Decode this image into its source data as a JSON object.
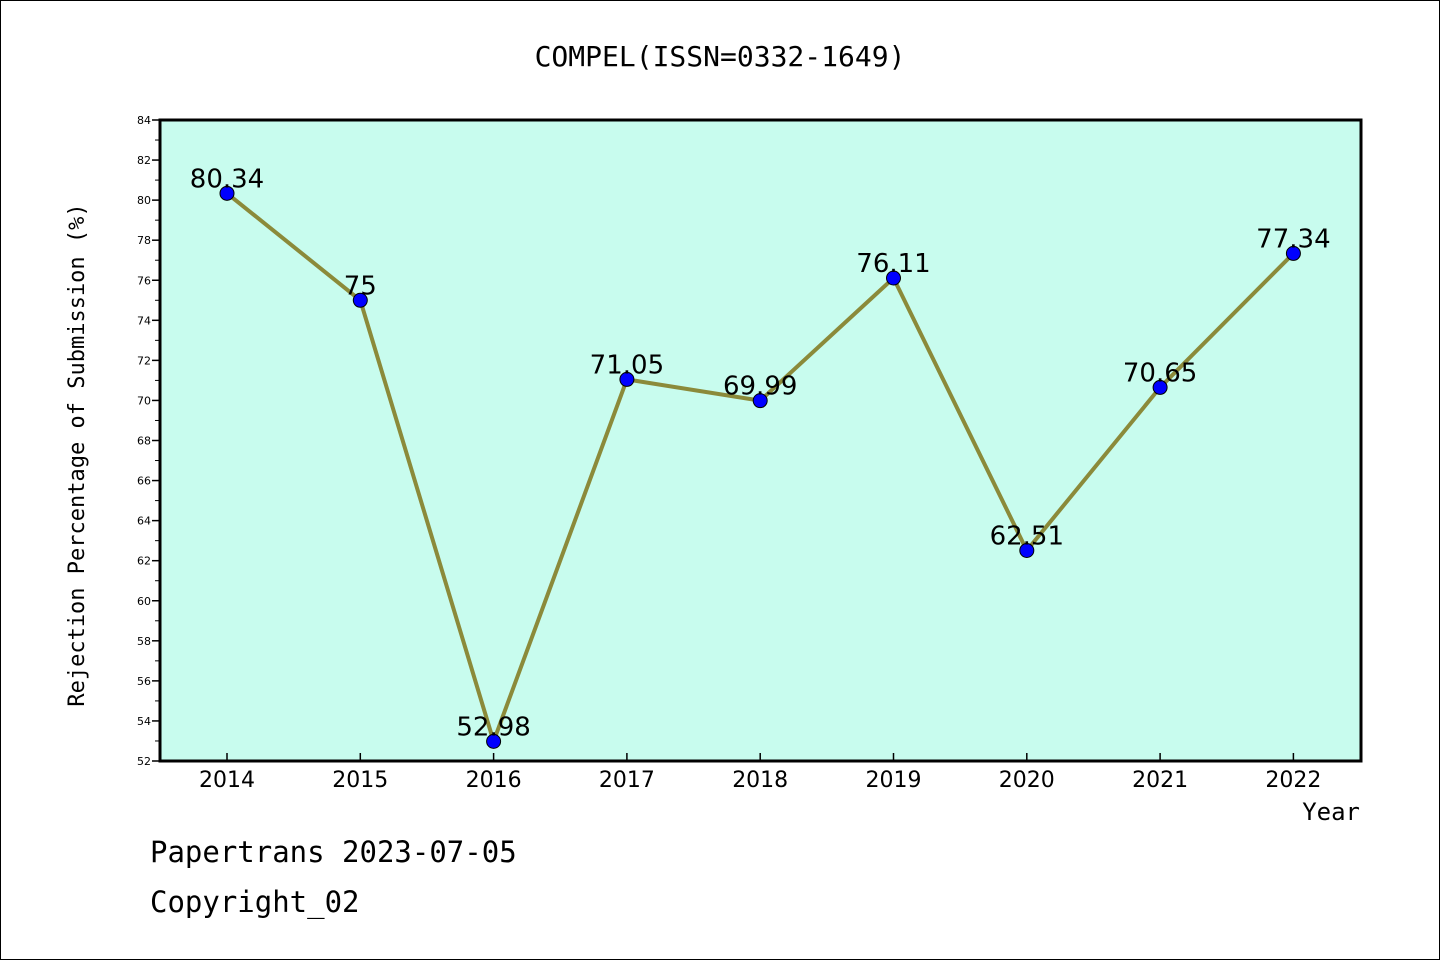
{
  "chart_data": {
    "type": "line",
    "title": "COMPEL(ISSN=0332-1649)",
    "xlabel": "Year",
    "ylabel": "Rejection Percentage of Submission (%)",
    "categories": [
      "2014",
      "2015",
      "2016",
      "2017",
      "2018",
      "2019",
      "2020",
      "2021",
      "2022"
    ],
    "series": [
      {
        "values": [
          80.34,
          75,
          52.98,
          71.05,
          69.99,
          76.11,
          62.51,
          70.65,
          77.34
        ]
      }
    ],
    "data_labels": [
      "80.34",
      "75",
      "52.98",
      "71.05",
      "69.99",
      "76.11",
      "62.51",
      "70.65",
      "77.34"
    ],
    "ylim": [
      52,
      84
    ],
    "yticks": [
      "52",
      "54",
      "56",
      "58",
      "60",
      "62",
      "64",
      "66",
      "68",
      "70",
      "72",
      "74",
      "76",
      "78",
      "80",
      "82",
      "84"
    ],
    "grid": false,
    "legend": "none",
    "colors": {
      "plot_background": "#c8fcee",
      "line": "#8b8a3a",
      "marker": "#0000ff"
    }
  },
  "footer": {
    "line1": "Papertrans 2023-07-05",
    "line2": "Copyright_02"
  }
}
